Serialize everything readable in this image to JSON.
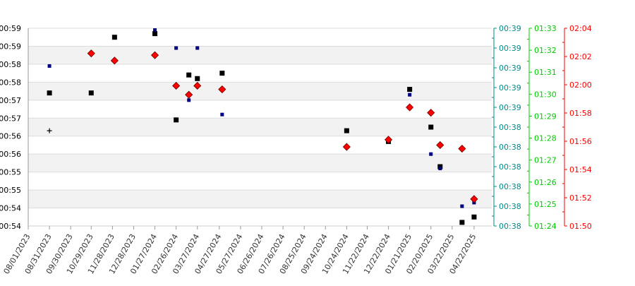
{
  "chart_data": {
    "type": "scatter",
    "title": "",
    "xlabel": "",
    "x_tick_labels": [
      "08/01/2023",
      "08/31/2023",
      "09/30/2023",
      "10/29/2023",
      "11/28/2023",
      "12/28/2023",
      "01/27/2024",
      "02/26/2024",
      "03/27/2024",
      "04/27/2024",
      "05/27/2024",
      "06/26/2024",
      "07/26/2024",
      "08/25/2024",
      "09/24/2024",
      "10/24/2024",
      "11/22/2024",
      "12/22/2024",
      "01/21/2025",
      "02/20/2025",
      "03/22/2025",
      "04/22/2025"
    ],
    "xlim": [
      "2023-08-01",
      "2025-05-17"
    ],
    "left_axis": {
      "color": "#000000",
      "tick_labels": [
        "00:59",
        "00:59",
        "00:58",
        "00:58",
        "00:57",
        "00:57",
        "00:56",
        "00:56",
        "00:55",
        "00:55",
        "00:54",
        "00:54"
      ],
      "ylim": [
        0.0,
        11.0
      ]
    },
    "right_axes": [
      {
        "color": "#008b8b",
        "tick_labels": [
          "00:39",
          "00:39",
          "00:39",
          "00:39",
          "00:39",
          "00:38",
          "00:38",
          "00:38",
          "00:38",
          "00:38",
          "00:38"
        ]
      },
      {
        "color": "#00cc00",
        "tick_labels": [
          "01:33",
          "01:32",
          "01:31",
          "01:30",
          "01:29",
          "01:28",
          "01:27",
          "01:26",
          "01:25",
          "01:24"
        ]
      },
      {
        "color": "#ff0000",
        "tick_labels": [
          "02:04",
          "02:02",
          "02:00",
          "01:58",
          "01:56",
          "01:54",
          "01:52",
          "01:50"
        ]
      }
    ],
    "grid": true,
    "legend": "none",
    "series": [
      {
        "marker": "square-black",
        "color": "#000000",
        "points": [
          {
            "x": "2023-08-31",
            "y": 7.4
          },
          {
            "x": "2023-10-29",
            "y": 7.4
          },
          {
            "x": "2023-12-01",
            "y": 10.5
          },
          {
            "x": "2024-01-27",
            "y": 10.7
          },
          {
            "x": "2024-02-26",
            "y": 5.9
          },
          {
            "x": "2024-03-15",
            "y": 8.4
          },
          {
            "x": "2024-03-27",
            "y": 8.2
          },
          {
            "x": "2024-05-01",
            "y": 8.5
          },
          {
            "x": "2024-10-24",
            "y": 5.3
          },
          {
            "x": "2024-12-22",
            "y": 4.7
          },
          {
            "x": "2025-01-21",
            "y": 7.6
          },
          {
            "x": "2025-02-20",
            "y": 5.5
          },
          {
            "x": "2025-03-05",
            "y": 3.3
          },
          {
            "x": "2025-04-05",
            "y": 0.2
          },
          {
            "x": "2025-04-22",
            "y": 0.5
          }
        ]
      },
      {
        "marker": "square-navy",
        "color": "#000080",
        "points": [
          {
            "x": "2023-08-31",
            "y": 8.9
          },
          {
            "x": "2024-01-27",
            "y": 10.9
          },
          {
            "x": "2024-02-26",
            "y": 9.9
          },
          {
            "x": "2024-03-15",
            "y": 7.0
          },
          {
            "x": "2024-03-27",
            "y": 9.9
          },
          {
            "x": "2024-05-01",
            "y": 6.2
          },
          {
            "x": "2025-01-21",
            "y": 7.3
          },
          {
            "x": "2025-02-20",
            "y": 4.0
          },
          {
            "x": "2025-03-05",
            "y": 3.2
          },
          {
            "x": "2025-04-05",
            "y": 1.1
          },
          {
            "x": "2025-04-22",
            "y": 1.3
          }
        ]
      },
      {
        "marker": "diamond-red",
        "color": "#ff0000",
        "points": [
          {
            "x": "2023-10-29",
            "y": 9.6
          },
          {
            "x": "2023-12-01",
            "y": 9.2
          },
          {
            "x": "2024-01-27",
            "y": 9.5
          },
          {
            "x": "2024-02-26",
            "y": 7.8
          },
          {
            "x": "2024-03-15",
            "y": 7.3
          },
          {
            "x": "2024-03-27",
            "y": 7.8
          },
          {
            "x": "2024-05-01",
            "y": 7.6
          },
          {
            "x": "2024-10-24",
            "y": 4.4
          },
          {
            "x": "2024-12-22",
            "y": 4.8
          },
          {
            "x": "2025-01-21",
            "y": 6.6
          },
          {
            "x": "2025-02-20",
            "y": 6.3
          },
          {
            "x": "2025-03-05",
            "y": 4.5
          },
          {
            "x": "2025-04-05",
            "y": 4.3
          },
          {
            "x": "2025-04-22",
            "y": 1.5
          }
        ]
      },
      {
        "marker": "plus-black",
        "color": "#000000",
        "points": [
          {
            "x": "2023-08-31",
            "y": 5.3
          }
        ]
      }
    ]
  }
}
